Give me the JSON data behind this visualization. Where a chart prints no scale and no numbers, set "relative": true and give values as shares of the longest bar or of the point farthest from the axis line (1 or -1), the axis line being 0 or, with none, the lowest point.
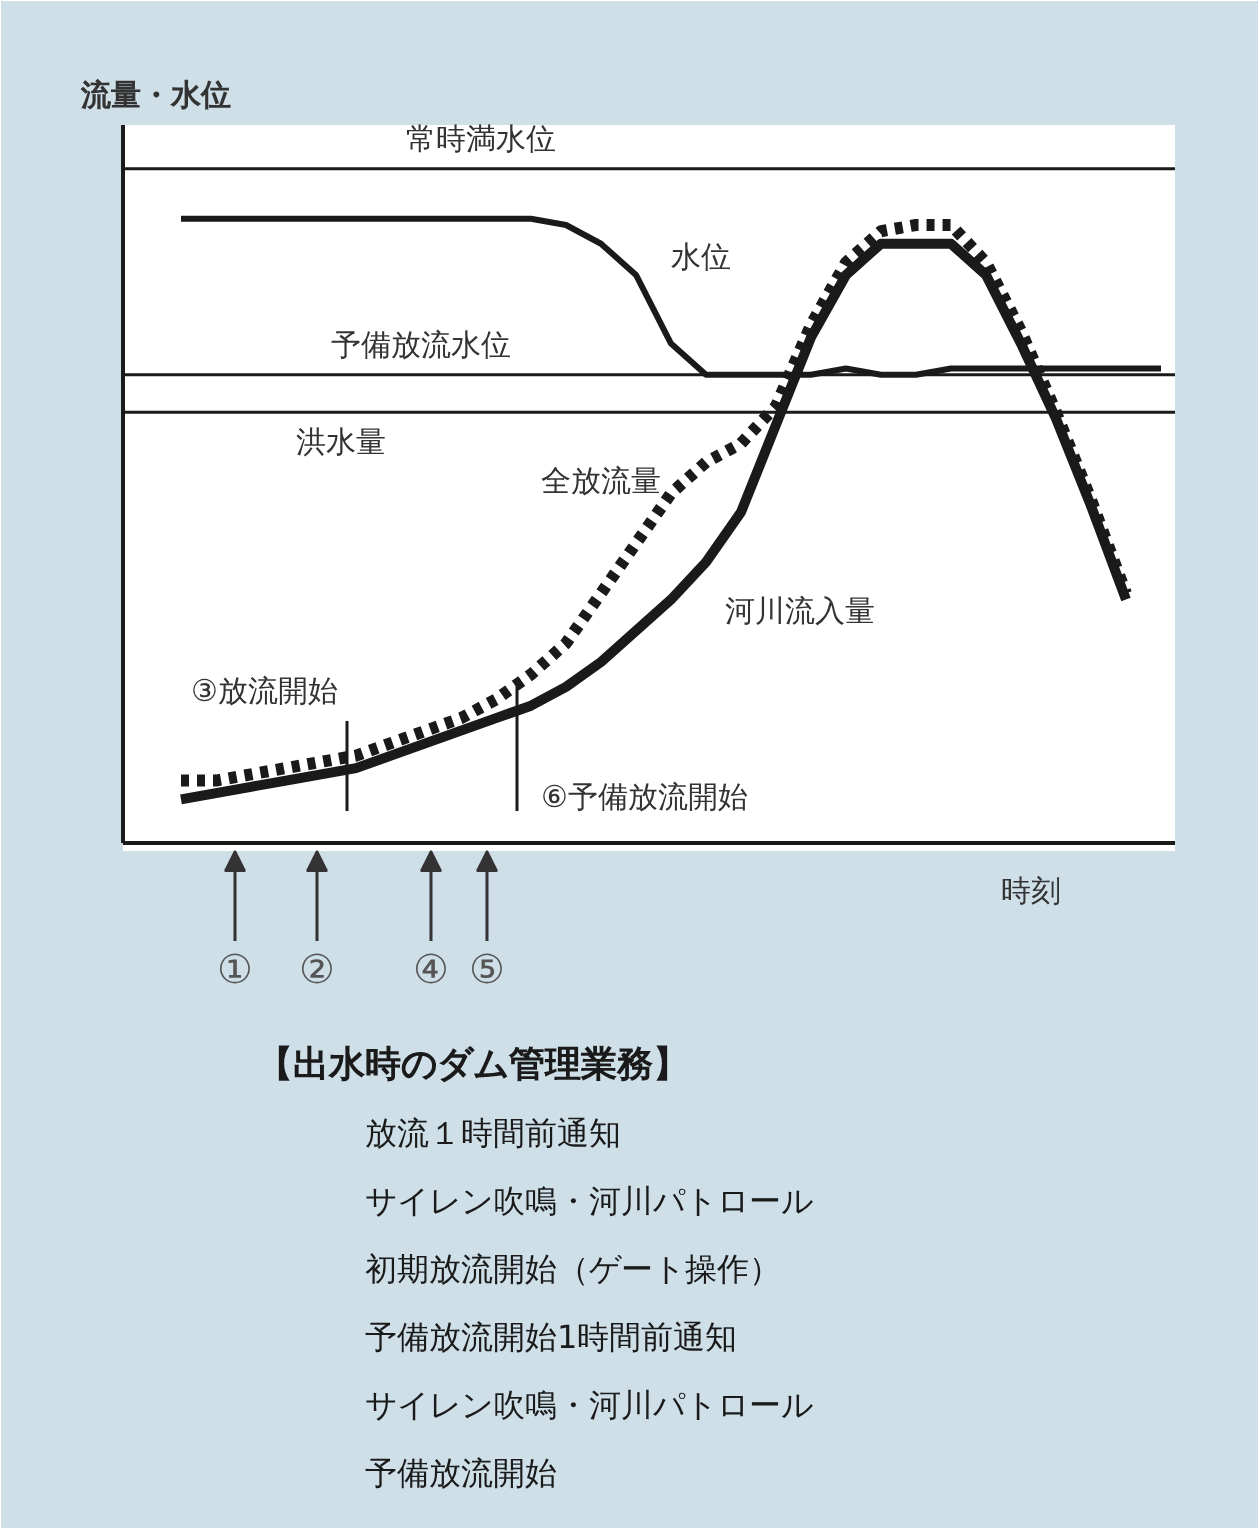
{
  "chart_data": {
    "type": "line",
    "relative": true,
    "title": "【出水時のダム管理業務】",
    "xlabel": "時刻",
    "ylabel": "流量・水位",
    "categories": [
      null,
      null,
      null,
      null,
      null,
      null,
      null,
      null,
      null,
      null,
      null,
      null,
      null,
      null,
      null,
      null,
      null,
      null,
      null,
      null,
      null,
      null,
      null,
      null,
      null,
      null,
      null,
      null,
      null
    ],
    "series": [
      {
        "name": "水位",
        "color": "#1a1a1a",
        "line_style": "solid",
        "values": [
          1.0,
          1.0,
          1.0,
          1.0,
          1.0,
          1.0,
          1.0,
          1.0,
          1.0,
          1.0,
          1.0,
          0.99,
          0.96,
          0.91,
          0.8,
          0.75,
          0.75,
          0.75,
          0.75,
          0.76,
          0.75,
          0.75,
          0.76,
          0.76,
          0.76,
          0.76,
          0.76,
          0.76,
          0.76
        ]
      },
      {
        "name": "河川流入量",
        "color": "#1a1a1a",
        "line_style": "solid",
        "values": [
          0.07,
          0.08,
          0.09,
          0.1,
          0.11,
          0.12,
          0.14,
          0.16,
          0.18,
          0.2,
          0.22,
          0.25,
          0.29,
          0.34,
          0.39,
          0.45,
          0.53,
          0.67,
          0.81,
          0.91,
          0.96,
          0.96,
          0.96,
          0.91,
          0.8,
          0.68,
          0.54,
          0.39,
          null
        ]
      },
      {
        "name": "全放流量",
        "color": "#1a1a1a",
        "line_style": "dotted",
        "values": [
          0.1,
          0.1,
          0.11,
          0.12,
          0.13,
          0.14,
          0.16,
          0.18,
          0.2,
          0.23,
          0.27,
          0.32,
          0.4,
          0.48,
          0.56,
          0.61,
          0.64,
          0.7,
          0.83,
          0.93,
          0.98,
          0.99,
          0.99,
          0.93,
          0.82,
          0.69,
          0.55,
          0.4,
          null
        ]
      }
    ],
    "ref_lines": [
      {
        "axis": "y",
        "value": 1.08,
        "label": "常時満水位",
        "color": "#1a1a1a"
      },
      {
        "axis": "y",
        "value": 0.75,
        "label": "予備放流水位",
        "color": "#1a1a1a"
      },
      {
        "axis": "y",
        "value": 0.69,
        "label": "洪水量",
        "color": "#1a1a1a"
      }
    ],
    "annotations": [
      "③放流開始",
      "⑥予備放流開始",
      "①",
      "②",
      "④",
      "⑤",
      "放流１時間前通知",
      "サイレン吹鳴・河川パトロール",
      "初期放流開始（ゲート操作）",
      "予備放流開始1時間前通知",
      "サイレン吹鳴・河川パトロール",
      "予備放流開始"
    ]
  }
}
